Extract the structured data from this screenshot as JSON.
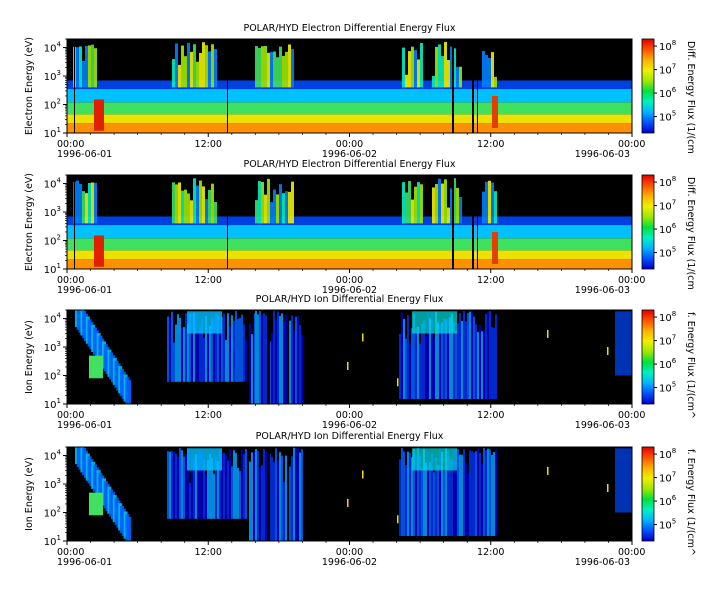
{
  "chart_data": [
    {
      "type": "heatmap",
      "title": "POLAR/HYD  Electron Differential Energy Flux",
      "ylabel": "Electron Energy (eV)",
      "yscale": "log",
      "ylim": [
        10,
        20000
      ],
      "y_ticks": [
        {
          "base": "10",
          "exp": "1"
        },
        {
          "base": "10",
          "exp": "2"
        },
        {
          "base": "10",
          "exp": "3"
        },
        {
          "base": "10",
          "exp": "4"
        }
      ],
      "x_ticks": [
        {
          "time": "00:00",
          "date": "1996-06-01"
        },
        {
          "time": "12:00",
          "date": ""
        },
        {
          "time": "00:00",
          "date": "1996-06-02"
        },
        {
          "time": "12:00",
          "date": ""
        },
        {
          "time": "00:00",
          "date": "1996-06-03"
        }
      ],
      "xlim": [
        "1996-06-01 00:00",
        "1996-06-03 00:00"
      ],
      "colorbar": {
        "label": "Diff. Energy Flux (1/(cm",
        "scale": "log",
        "range": [
          20000,
          200000000
        ],
        "ticks": [
          {
            "base": "10",
            "exp": "5"
          },
          {
            "base": "10",
            "exp": "6"
          },
          {
            "base": "10",
            "exp": "7"
          },
          {
            "base": "10",
            "exp": "8"
          }
        ]
      },
      "colormap": [
        "#0000c8",
        "#0050ff",
        "#00b4ff",
        "#00f0c0",
        "#00e040",
        "#a0e800",
        "#f0f000",
        "#ffb000",
        "#ff5000",
        "#e00000"
      ],
      "background": "#000000"
    },
    {
      "type": "heatmap",
      "title": "POLAR/HYD  Electron Differential Energy Flux",
      "ylabel": "Electron Energy (eV)",
      "yscale": "log",
      "ylim": [
        10,
        20000
      ],
      "y_ticks": [
        {
          "base": "10",
          "exp": "1"
        },
        {
          "base": "10",
          "exp": "2"
        },
        {
          "base": "10",
          "exp": "3"
        },
        {
          "base": "10",
          "exp": "4"
        }
      ],
      "x_ticks": [
        {
          "time": "00:00",
          "date": "1996-06-01"
        },
        {
          "time": "12:00",
          "date": ""
        },
        {
          "time": "00:00",
          "date": "1996-06-02"
        },
        {
          "time": "12:00",
          "date": ""
        },
        {
          "time": "00:00",
          "date": "1996-06-03"
        }
      ],
      "xlim": [
        "1996-06-01 00:00",
        "1996-06-03 00:00"
      ],
      "colorbar": {
        "label": "Diff. Energy Flux (1/(cm",
        "scale": "log",
        "range": [
          20000,
          200000000
        ],
        "ticks": [
          {
            "base": "10",
            "exp": "5"
          },
          {
            "base": "10",
            "exp": "6"
          },
          {
            "base": "10",
            "exp": "7"
          },
          {
            "base": "10",
            "exp": "8"
          }
        ]
      },
      "colormap": [
        "#0000c8",
        "#0050ff",
        "#00b4ff",
        "#00f0c0",
        "#00e040",
        "#a0e800",
        "#f0f000",
        "#ffb000",
        "#ff5000",
        "#e00000"
      ],
      "background": "#000000"
    },
    {
      "type": "heatmap",
      "title": "POLAR/HYD  Ion Differential Energy Flux",
      "ylabel": "Ion Energy (eV)",
      "yscale": "log",
      "ylim": [
        10,
        20000
      ],
      "y_ticks": [
        {
          "base": "10",
          "exp": "1"
        },
        {
          "base": "10",
          "exp": "2"
        },
        {
          "base": "10",
          "exp": "3"
        },
        {
          "base": "10",
          "exp": "4"
        }
      ],
      "x_ticks": [
        {
          "time": "00:00",
          "date": "1996-06-01"
        },
        {
          "time": "12:00",
          "date": ""
        },
        {
          "time": "00:00",
          "date": "1996-06-02"
        },
        {
          "time": "12:00",
          "date": ""
        },
        {
          "time": "00:00",
          "date": "1996-06-03"
        }
      ],
      "xlim": [
        "1996-06-01 00:00",
        "1996-06-03 00:00"
      ],
      "colorbar": {
        "label": "f. Energy Flux (1/(cm^",
        "scale": "log",
        "range": [
          20000,
          200000000
        ],
        "ticks": [
          {
            "base": "10",
            "exp": "5"
          },
          {
            "base": "10",
            "exp": "6"
          },
          {
            "base": "10",
            "exp": "7"
          },
          {
            "base": "10",
            "exp": "8"
          }
        ]
      },
      "colormap": [
        "#0000c8",
        "#0050ff",
        "#00b4ff",
        "#00f0c0",
        "#00e040",
        "#a0e800",
        "#f0f000",
        "#ffb000",
        "#ff5000",
        "#e00000"
      ],
      "background": "#000000"
    },
    {
      "type": "heatmap",
      "title": "POLAR/HYD  Ion Differential Energy Flux",
      "ylabel": "Ion Energy (eV)",
      "yscale": "log",
      "ylim": [
        10,
        20000
      ],
      "y_ticks": [
        {
          "base": "10",
          "exp": "1"
        },
        {
          "base": "10",
          "exp": "2"
        },
        {
          "base": "10",
          "exp": "3"
        },
        {
          "base": "10",
          "exp": "4"
        }
      ],
      "x_ticks": [
        {
          "time": "00:00",
          "date": "1996-06-01"
        },
        {
          "time": "12:00",
          "date": ""
        },
        {
          "time": "00:00",
          "date": "1996-06-02"
        },
        {
          "time": "12:00",
          "date": ""
        },
        {
          "time": "00:00",
          "date": "1996-06-03"
        }
      ],
      "xlim": [
        "1996-06-01 00:00",
        "1996-06-03 00:00"
      ],
      "colorbar": {
        "label": "f. Energy Flux (1/(cm^",
        "scale": "log",
        "range": [
          20000,
          200000000
        ],
        "ticks": [
          {
            "base": "10",
            "exp": "5"
          },
          {
            "base": "10",
            "exp": "6"
          },
          {
            "base": "10",
            "exp": "7"
          },
          {
            "base": "10",
            "exp": "8"
          }
        ]
      },
      "colormap": [
        "#0000c8",
        "#0050ff",
        "#00b4ff",
        "#00f0c0",
        "#00e040",
        "#a0e800",
        "#f0f000",
        "#ffb000",
        "#ff5000",
        "#e00000"
      ],
      "background": "#000000"
    }
  ]
}
